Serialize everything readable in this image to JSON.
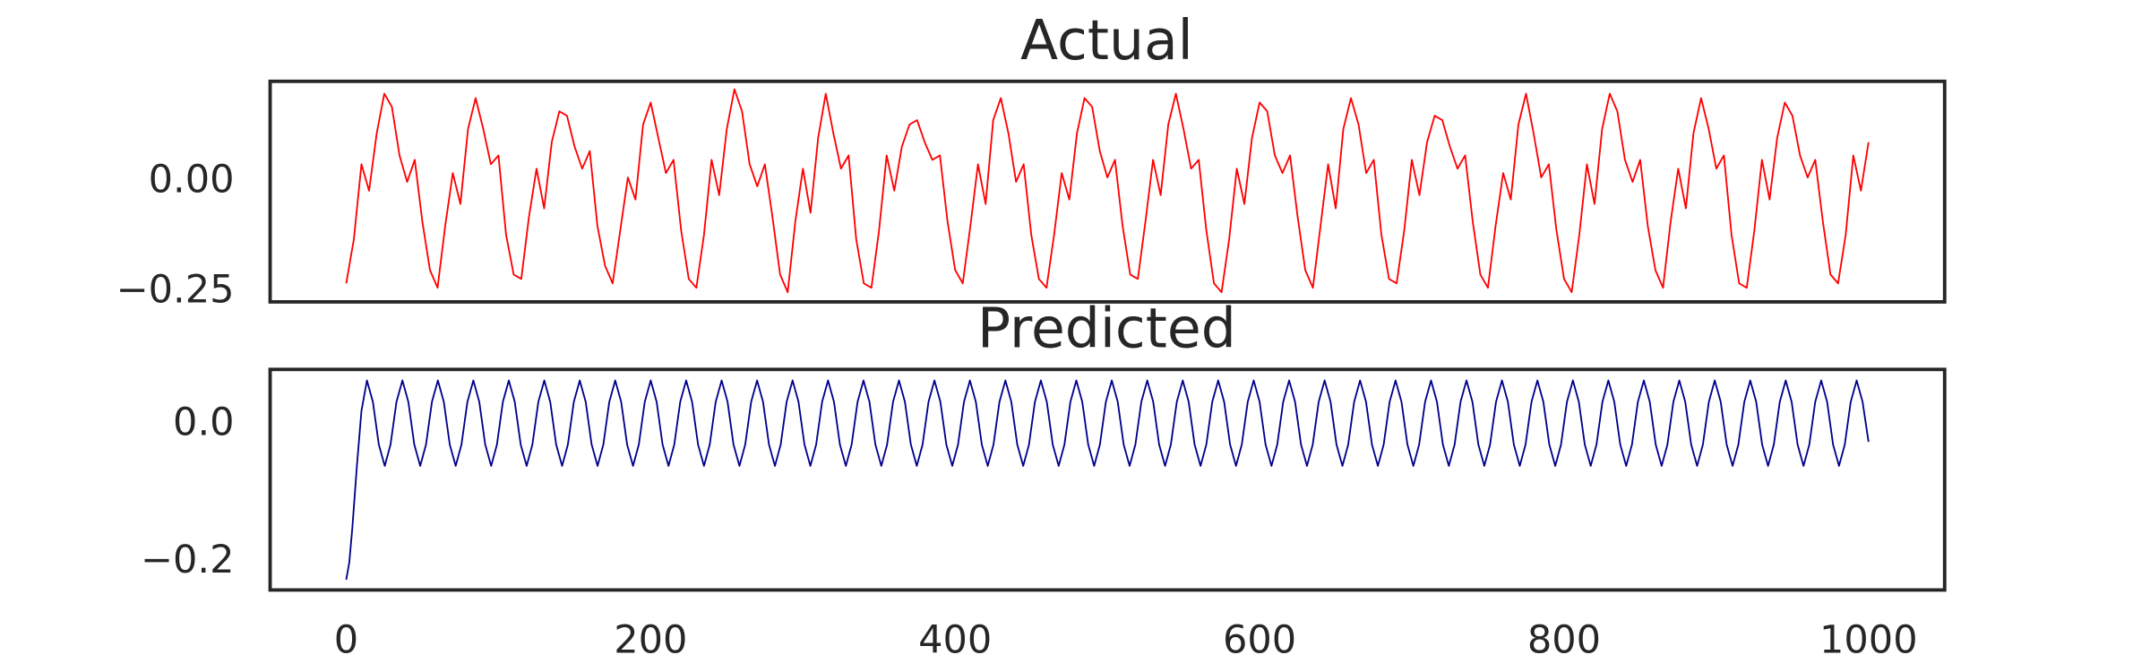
{
  "chart_data": [
    {
      "type": "line",
      "title": "Actual",
      "color": "#ff0000",
      "xlim": [
        -50,
        1050
      ],
      "ylim": [
        -0.272,
        0.228
      ],
      "yticks": [
        {
          "value": 0,
          "label": "0.00"
        },
        {
          "value": -0.25,
          "label": "−0.25"
        }
      ],
      "x": [
        0,
        5,
        10,
        15,
        20,
        25,
        30,
        35,
        40,
        45,
        50,
        55,
        60,
        65,
        70,
        75,
        80,
        85,
        90,
        95,
        100,
        105,
        110,
        115,
        120,
        125,
        130,
        135,
        140,
        145,
        150,
        155,
        160,
        165,
        170,
        175,
        180,
        185,
        190,
        195,
        200,
        205,
        210,
        215,
        220,
        225,
        230,
        235,
        240,
        245,
        250,
        255,
        260,
        265,
        270,
        275,
        280,
        285,
        290,
        295,
        300,
        305,
        310,
        315,
        320,
        325,
        330,
        335,
        340,
        345,
        350,
        355,
        360,
        365,
        370,
        375,
        380,
        385,
        390,
        395,
        400,
        405,
        410,
        415,
        420,
        425,
        430,
        435,
        440,
        445,
        450,
        455,
        460,
        465,
        470,
        475,
        480,
        485,
        490,
        495,
        500,
        505,
        510,
        515,
        520,
        525,
        530,
        535,
        540,
        545,
        550,
        555,
        560,
        565,
        570,
        575,
        580,
        585,
        590,
        595,
        600,
        605,
        610,
        615,
        620,
        625,
        630,
        635,
        640,
        645,
        650,
        655,
        660,
        665,
        670,
        675,
        680,
        685,
        690,
        695,
        700,
        705,
        710,
        715,
        720,
        725,
        730,
        735,
        740,
        745,
        750,
        755,
        760,
        765,
        770,
        775,
        780,
        785,
        790,
        795,
        800,
        805,
        810,
        815,
        820,
        825,
        830,
        835,
        840,
        845,
        850,
        855,
        860,
        865,
        870,
        875,
        880,
        885,
        890,
        895,
        900,
        905,
        910,
        915,
        920,
        925,
        930,
        935,
        940,
        945,
        950,
        955,
        960,
        965,
        970,
        975,
        980,
        985,
        990,
        995,
        1000
      ],
      "values": [
        -0.23,
        -0.13,
        0.04,
        -0.02,
        0.11,
        0.2,
        0.17,
        0.06,
        0.0,
        0.05,
        -0.09,
        -0.2,
        -0.24,
        -0.1,
        0.02,
        -0.05,
        0.12,
        0.19,
        0.12,
        0.04,
        0.06,
        -0.12,
        -0.21,
        -0.22,
        -0.08,
        0.03,
        -0.06,
        0.09,
        0.16,
        0.15,
        0.08,
        0.03,
        0.07,
        -0.1,
        -0.19,
        -0.23,
        -0.11,
        0.01,
        -0.04,
        0.13,
        0.18,
        0.1,
        0.02,
        0.05,
        -0.11,
        -0.22,
        -0.24,
        -0.12,
        0.05,
        -0.03,
        0.12,
        0.21,
        0.16,
        0.04,
        -0.01,
        0.04,
        -0.08,
        -0.21,
        -0.25,
        -0.09,
        0.03,
        -0.07,
        0.1,
        0.2,
        0.11,
        0.03,
        0.06,
        -0.13,
        -0.23,
        -0.24,
        -0.11,
        0.06,
        -0.02,
        0.08,
        0.13,
        0.14,
        0.09,
        0.05,
        0.06,
        -0.09,
        -0.2,
        -0.23,
        -0.1,
        0.04,
        -0.05,
        0.14,
        0.19,
        0.11,
        0.0,
        0.04,
        -0.12,
        -0.22,
        -0.24,
        -0.12,
        0.02,
        -0.04,
        0.11,
        0.19,
        0.17,
        0.07,
        0.01,
        0.05,
        -0.1,
        -0.21,
        -0.22,
        -0.09,
        0.05,
        -0.03,
        0.13,
        0.2,
        0.12,
        0.03,
        0.05,
        -0.11,
        -0.23,
        -0.25,
        -0.13,
        0.03,
        -0.05,
        0.1,
        0.18,
        0.16,
        0.06,
        0.02,
        0.06,
        -0.08,
        -0.2,
        -0.24,
        -0.1,
        0.04,
        -0.06,
        0.12,
        0.19,
        0.13,
        0.02,
        0.05,
        -0.12,
        -0.22,
        -0.23,
        -0.11,
        0.05,
        -0.03,
        0.09,
        0.15,
        0.14,
        0.08,
        0.03,
        0.06,
        -0.09,
        -0.21,
        -0.24,
        -0.1,
        0.02,
        -0.04,
        0.13,
        0.2,
        0.11,
        0.01,
        0.04,
        -0.11,
        -0.22,
        -0.25,
        -0.12,
        0.04,
        -0.05,
        0.12,
        0.2,
        0.16,
        0.05,
        0.0,
        0.05,
        -0.1,
        -0.2,
        -0.24,
        -0.09,
        0.03,
        -0.06,
        0.11,
        0.19,
        0.12,
        0.03,
        0.06,
        -0.12,
        -0.23,
        -0.24,
        -0.11,
        0.05,
        -0.04,
        0.1,
        0.18,
        0.15,
        0.06,
        0.01,
        0.05,
        -0.09,
        -0.21,
        -0.23,
        -0.12,
        0.06,
        -0.02,
        0.09
      ]
    },
    {
      "type": "line",
      "title": "Predicted",
      "color": "#00008b",
      "xlim": [
        -50,
        1050
      ],
      "ylim": [
        -0.24,
        0.08
      ],
      "yticks": [
        {
          "value": 0,
          "label": "0.0"
        },
        {
          "value": -0.2,
          "label": "−0.2"
        }
      ],
      "xticks": [
        0,
        200,
        400,
        600,
        800,
        1000
      ],
      "x": [
        0,
        2,
        4,
        7,
        10,
        13.6,
        17.5,
        21.4,
        25.3,
        29.1,
        33.0,
        36.9,
        40.8,
        44.7,
        48.6,
        52.4,
        56.3,
        60.2,
        64.1,
        68.0,
        71.9,
        75.7,
        79.6,
        83.5,
        87.4,
        91.3,
        95.2,
        99.0,
        102.9,
        106.8,
        110.7,
        114.6,
        118.5,
        122.3,
        126.2,
        130.1,
        134.0,
        137.9,
        141.8,
        145.6,
        149.5,
        153.4,
        157.3,
        161.2,
        165.1,
        168.9,
        172.8,
        176.7,
        180.6,
        184.5,
        188.4,
        192.2,
        196.1,
        200,
        203.9,
        207.8,
        211.7,
        215.5,
        219.4,
        223.3,
        227.2,
        231.1,
        235.0,
        238.8,
        242.7,
        246.6,
        250.5,
        254.4,
        258.3,
        262.1,
        266.0,
        269.9,
        273.8,
        277.7,
        281.6,
        285.4,
        289.3,
        293.2,
        297.1,
        301.0,
        304.9,
        308.7,
        312.6,
        316.5,
        320.4,
        324.3,
        328.2,
        332.0,
        335.9,
        339.8,
        343.7,
        347.6,
        351.5,
        355.3,
        359.2,
        363.1,
        367.0,
        370.9,
        374.8,
        378.6,
        382.5,
        386.4,
        390.3,
        394.2,
        398.1,
        401.9,
        405.8,
        409.7,
        413.6,
        417.5,
        421.4,
        425.2,
        429.1,
        433,
        436.9,
        440.8,
        444.7,
        448.5,
        452.4,
        456.3,
        460.2,
        464.1,
        468.0,
        471.8,
        475.7,
        479.6,
        483.5,
        487.4,
        491.3,
        495.1,
        499.0,
        502.9,
        506.8,
        510.7,
        514.6,
        518.4,
        522.3,
        526.2,
        530.1,
        534.0,
        537.9,
        541.7,
        545.6,
        549.5,
        553.4,
        557.3,
        561.2,
        565.0,
        568.9,
        572.8,
        576.7,
        580.6,
        584.5,
        588.3,
        592.2,
        596.1,
        600.0,
        603.9,
        607.8,
        611.6,
        615.5,
        619.4,
        623.3,
        627.2,
        631.1,
        634.9,
        638.8,
        642.7,
        646.6,
        650.5,
        654.4,
        658.2,
        662.1,
        666,
        669.9,
        673.8,
        677.7,
        681.5,
        685.4,
        689.3,
        693.2,
        697.1,
        701.0,
        704.8,
        708.7,
        712.6,
        716.5,
        720.4,
        724.3,
        728.1,
        732.0,
        735.9,
        739.8,
        743.7,
        747.6,
        751.4,
        755.3,
        759.2,
        763.1,
        767.0,
        770.9,
        774.7,
        778.6,
        782.5,
        786.4,
        790.3,
        794.2,
        798.0,
        801.9,
        805.8,
        809.7,
        813.6,
        817.5,
        821.3,
        825.2,
        829.1,
        833.0,
        836.9,
        840.8,
        844.6,
        848.5,
        852.4,
        856.3,
        860.2,
        864.1,
        867.9,
        871.8,
        875.7,
        879.6,
        883.5,
        887.4,
        891.2,
        895.1,
        899,
        902.9,
        906.8,
        910.7,
        914.5,
        918.4,
        922.3,
        926.2,
        930.1,
        934.0,
        937.8,
        941.7,
        945.6,
        949.5,
        953.4,
        957.3,
        961.1,
        965.0,
        968.9,
        972.8,
        976.7,
        980.6,
        984.4,
        988.3,
        992.2,
        996.1,
        1000
      ],
      "values": [
        -0.225,
        -0.2,
        -0.15,
        -0.06,
        0.02,
        0.064,
        0.033,
        -0.029,
        -0.06,
        -0.029,
        0.033,
        0.064,
        0.033,
        -0.029,
        -0.06,
        -0.029,
        0.033,
        0.064,
        0.033,
        -0.029,
        -0.06,
        -0.029,
        0.033,
        0.064,
        0.033,
        -0.029,
        -0.06,
        -0.029,
        0.033,
        0.064,
        0.033,
        -0.029,
        -0.06,
        -0.029,
        0.033,
        0.064,
        0.033,
        -0.029,
        -0.06,
        -0.029,
        0.033,
        0.064,
        0.033,
        -0.029,
        -0.06,
        -0.029,
        0.033,
        0.064,
        0.033,
        -0.029,
        -0.06,
        -0.029,
        0.033,
        0.064,
        0.033,
        -0.029,
        -0.06,
        -0.029,
        0.033,
        0.064,
        0.033,
        -0.029,
        -0.06,
        -0.029,
        0.033,
        0.064,
        0.033,
        -0.029,
        -0.06,
        -0.029,
        0.033,
        0.064,
        0.033,
        -0.029,
        -0.06,
        -0.029,
        0.033,
        0.064,
        0.033,
        -0.029,
        -0.06,
        -0.029,
        0.033,
        0.064,
        0.033,
        -0.029,
        -0.06,
        -0.029,
        0.033,
        0.064,
        0.033,
        -0.029,
        -0.06,
        -0.029,
        0.033,
        0.064,
        0.033,
        -0.029,
        -0.06,
        -0.029,
        0.033,
        0.064,
        0.033,
        -0.029,
        -0.06,
        -0.029,
        0.033,
        0.064,
        0.033,
        -0.029,
        -0.06,
        -0.029,
        0.033,
        0.064,
        0.033,
        -0.029,
        -0.06,
        -0.029,
        0.033,
        0.064,
        0.033,
        -0.029,
        -0.06,
        -0.029,
        0.033,
        0.064,
        0.033,
        -0.029,
        -0.06,
        -0.029,
        0.033,
        0.064,
        0.033,
        -0.029,
        -0.06,
        -0.029,
        0.033,
        0.064,
        0.033,
        -0.029,
        -0.06,
        -0.029,
        0.033,
        0.064,
        0.033,
        -0.029,
        -0.06,
        -0.029,
        0.033,
        0.064,
        0.033,
        -0.029,
        -0.06,
        -0.029,
        0.033,
        0.064,
        0.033,
        -0.029,
        -0.06,
        -0.029,
        0.033,
        0.064,
        0.033,
        -0.029,
        -0.06,
        -0.029,
        0.033,
        0.064,
        0.033,
        -0.029,
        -0.06,
        -0.029,
        0.033,
        0.064,
        0.033,
        -0.029,
        -0.06,
        -0.029,
        0.033,
        0.064,
        0.033,
        -0.029,
        -0.06,
        -0.029,
        0.033,
        0.064,
        0.033,
        -0.029,
        -0.06,
        -0.029,
        0.033,
        0.064,
        0.033,
        -0.029,
        -0.06,
        -0.029,
        0.033,
        0.064,
        0.033,
        -0.029,
        -0.06,
        -0.029,
        0.033,
        0.064,
        0.033,
        -0.029,
        -0.06,
        -0.029,
        0.033,
        0.064,
        0.033,
        -0.029,
        -0.06,
        -0.029,
        0.033,
        0.064,
        0.033,
        -0.029,
        -0.06,
        -0.029,
        0.033,
        0.064,
        0.033,
        -0.029,
        -0.06,
        -0.029,
        0.033,
        0.064,
        0.033,
        -0.029,
        -0.06,
        -0.029,
        0.033,
        0.064,
        0.033,
        -0.029,
        -0.06,
        -0.029,
        0.033,
        0.064,
        0.033,
        -0.029,
        -0.06,
        -0.029,
        0.033,
        0.064,
        0.033,
        -0.029,
        -0.06,
        -0.029,
        0.033,
        0.064,
        0.033,
        -0.029,
        -0.06,
        -0.029,
        0.033,
        0.064,
        0.033,
        -0.025
      ]
    }
  ]
}
